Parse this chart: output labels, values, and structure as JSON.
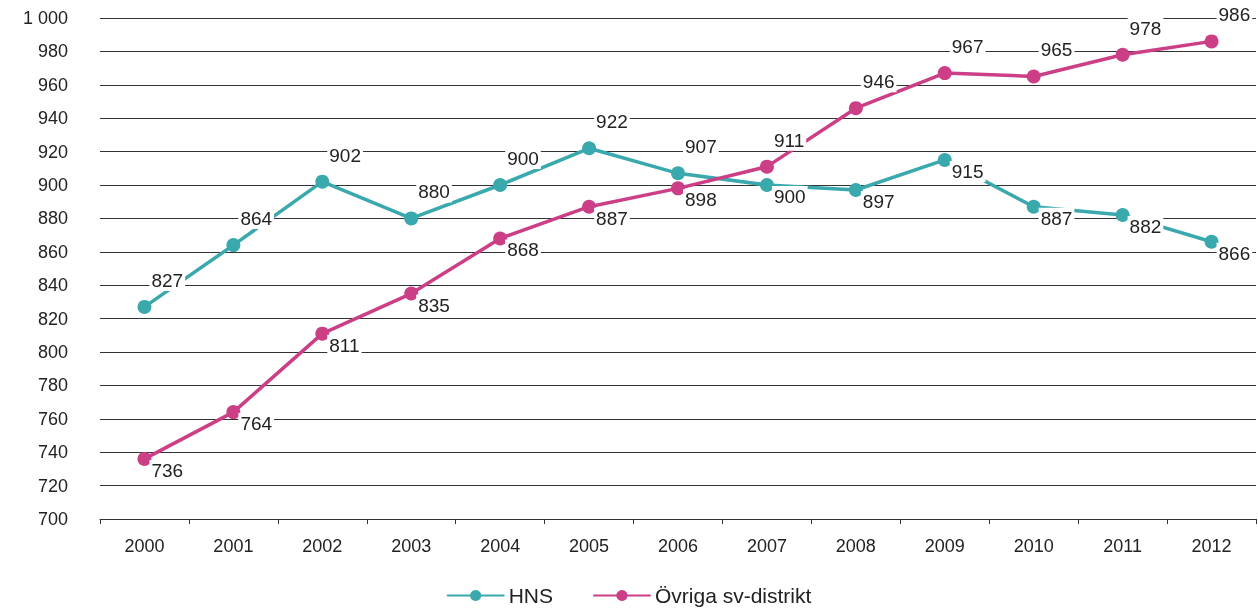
{
  "chart_data": {
    "type": "line",
    "categories": [
      "2000",
      "2001",
      "2002",
      "2003",
      "2004",
      "2005",
      "2006",
      "2007",
      "2008",
      "2009",
      "2010",
      "2011",
      "2012"
    ],
    "series": [
      {
        "name": "HNS",
        "color": "#3aa9ad",
        "values": [
          827,
          864,
          902,
          880,
          900,
          922,
          907,
          900,
          897,
          915,
          887,
          882,
          866
        ]
      },
      {
        "name": "Övriga sv-distrikt",
        "color": "#cc3f86",
        "values": [
          736,
          764,
          811,
          835,
          868,
          887,
          898,
          911,
          946,
          967,
          965,
          978,
          986
        ]
      }
    ],
    "ylim": [
      700,
      1000
    ],
    "yticks": [
      700,
      720,
      740,
      760,
      780,
      800,
      820,
      840,
      860,
      880,
      900,
      920,
      940,
      960,
      980,
      {
        "value": 1000,
        "label": "1 000"
      }
    ],
    "grid": "y",
    "legend": "bottom",
    "marker": "circle",
    "line_style": "solid",
    "data_labels": true
  }
}
